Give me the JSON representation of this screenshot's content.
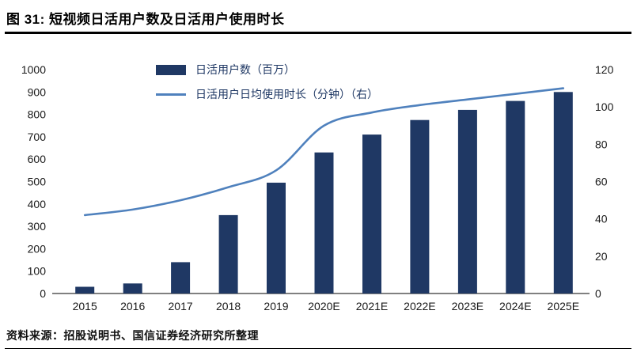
{
  "header": {
    "title": "图 31:  短视频日活用户数及日活用户使用时长"
  },
  "footer": {
    "source": "资料来源：招股说明书、国信证券经济研究所整理"
  },
  "colors": {
    "bar": "#1F3864",
    "line": "#4F81BD",
    "axis_text": "#1a1a1a",
    "legend_text": "#1F3864",
    "rule": "#000000"
  },
  "chart_data": {
    "type": "bar",
    "subtype": "combo-bar-line-dual-axis",
    "title": "短视频日活用户数及日活用户使用时长",
    "categories": [
      "2015",
      "2016",
      "2017",
      "2018",
      "2019",
      "2020E",
      "2021E",
      "2022E",
      "2023E",
      "2024E",
      "2025E"
    ],
    "series": [
      {
        "name": "日活用户数（百万）",
        "type": "bar",
        "axis": "left",
        "color": "#1F3864",
        "values": [
          30,
          45,
          140,
          350,
          495,
          630,
          710,
          775,
          820,
          860,
          900
        ]
      },
      {
        "name": "日活用户日均使用时长（分钟）（右）",
        "type": "line",
        "axis": "right",
        "color": "#4F81BD",
        "values": [
          42,
          45,
          50,
          57,
          66,
          90,
          97,
          101,
          104,
          107,
          110
        ]
      }
    ],
    "left_axis": {
      "min": 0,
      "max": 1000,
      "step": 100,
      "ticks": [
        0,
        100,
        200,
        300,
        400,
        500,
        600,
        700,
        800,
        900,
        1000
      ]
    },
    "right_axis": {
      "min": 0,
      "max": 120,
      "step": 20,
      "ticks": [
        0,
        20,
        40,
        60,
        80,
        100,
        120
      ]
    },
    "grid": false,
    "legend_position": "top-center-inside"
  }
}
